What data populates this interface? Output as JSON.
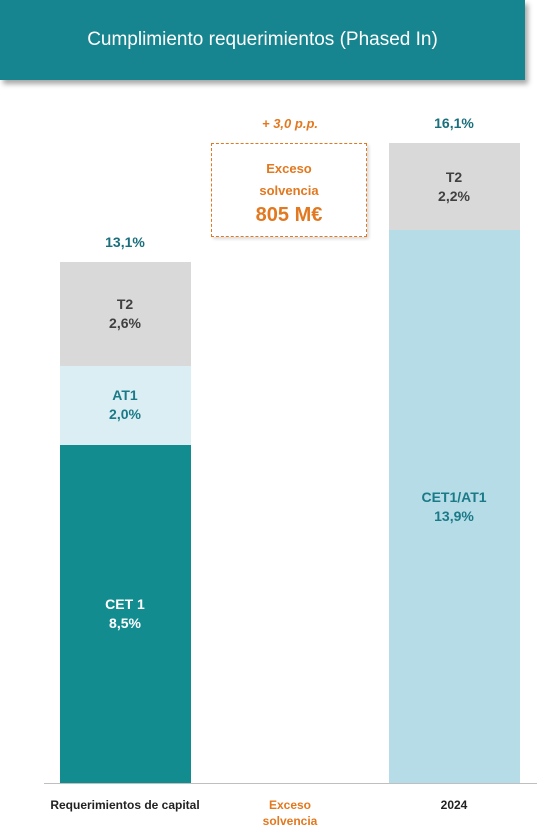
{
  "chart_data": {
    "type": "stacked_bar",
    "title": "Cumplimiento requerimientos (Phased In)",
    "categories": [
      "Requerimientos de capital",
      "Exceso solvencia",
      "2024"
    ],
    "series": [
      {
        "name": "CET 1",
        "color": "#138c90",
        "values": [
          8.5,
          null,
          null
        ],
        "value_labels": [
          "8,5%",
          null,
          null
        ]
      },
      {
        "name": "AT1",
        "color": "#daeef3",
        "values": [
          2.0,
          null,
          null
        ],
        "value_labels": [
          "2,0%",
          null,
          null
        ]
      },
      {
        "name": "CET1/AT1",
        "color": "#b6dce7",
        "values": [
          null,
          null,
          13.9
        ],
        "value_labels": [
          null,
          null,
          "13,9%"
        ]
      },
      {
        "name": "T2",
        "color": "#d9d9d9",
        "values": [
          2.6,
          null,
          2.2
        ],
        "value_labels": [
          "2,6%",
          null,
          "2,2%"
        ]
      }
    ],
    "totals": [
      13.1,
      null,
      16.1
    ],
    "total_labels": [
      "13,1%",
      null,
      "16,1%"
    ],
    "annotation": {
      "text": "+ 3,0 p.p.",
      "box_title": "Exceso solvencia",
      "box_value": "805 M€"
    },
    "ylim": [
      0,
      18
    ]
  }
}
